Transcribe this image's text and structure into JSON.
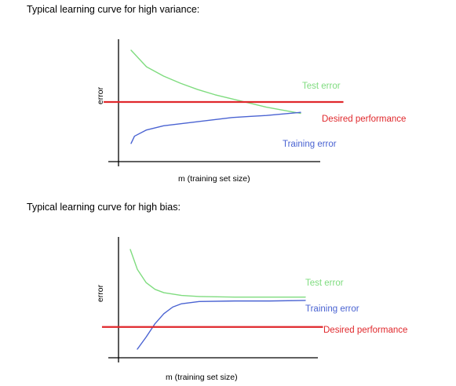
{
  "chart_data": [
    {
      "type": "line",
      "title": "Typical learning curve for high variance:",
      "xlabel": "m (training set size)",
      "ylabel": "error",
      "grid": false,
      "series": [
        {
          "name": "Test error",
          "color": "#7fdc7f",
          "x": [
            1,
            10,
            20,
            30,
            40,
            50,
            60,
            70,
            80,
            90,
            100
          ],
          "y": [
            100,
            84,
            75,
            68,
            62,
            57,
            53,
            49,
            45,
            42,
            39
          ]
        },
        {
          "name": "Training error",
          "color": "#4a63d2",
          "x": [
            1,
            3,
            10,
            20,
            30,
            40,
            50,
            60,
            70,
            80,
            90,
            100
          ],
          "y": [
            10,
            17,
            23,
            27,
            29,
            31,
            33,
            35,
            36,
            37,
            38.5,
            40
          ]
        },
        {
          "name": "Desired performance",
          "color": "#e0282c",
          "x": [
            -15,
            125
          ],
          "y": [
            50,
            50
          ]
        }
      ]
    },
    {
      "type": "line",
      "title": "Typical learning curve for high bias:",
      "xlabel": "m (training set size)",
      "ylabel": "error",
      "grid": false,
      "series": [
        {
          "name": "Test error",
          "color": "#7fdc7f",
          "x": [
            1,
            5,
            10,
            15,
            20,
            30,
            40,
            60,
            80,
            100
          ],
          "y": [
            100,
            82,
            70,
            64,
            61,
            58.5,
            57.5,
            57,
            57,
            57
          ]
        },
        {
          "name": "Training error",
          "color": "#4a63d2",
          "x": [
            5,
            10,
            15,
            20,
            25,
            30,
            40,
            60,
            80,
            100
          ],
          "y": [
            10,
            21,
            33,
            42,
            48,
            51,
            53,
            53.5,
            53.5,
            54
          ]
        },
        {
          "name": "Desired performance",
          "color": "#e0282c",
          "x": [
            -15,
            110
          ],
          "y": [
            30,
            30
          ]
        }
      ]
    }
  ]
}
